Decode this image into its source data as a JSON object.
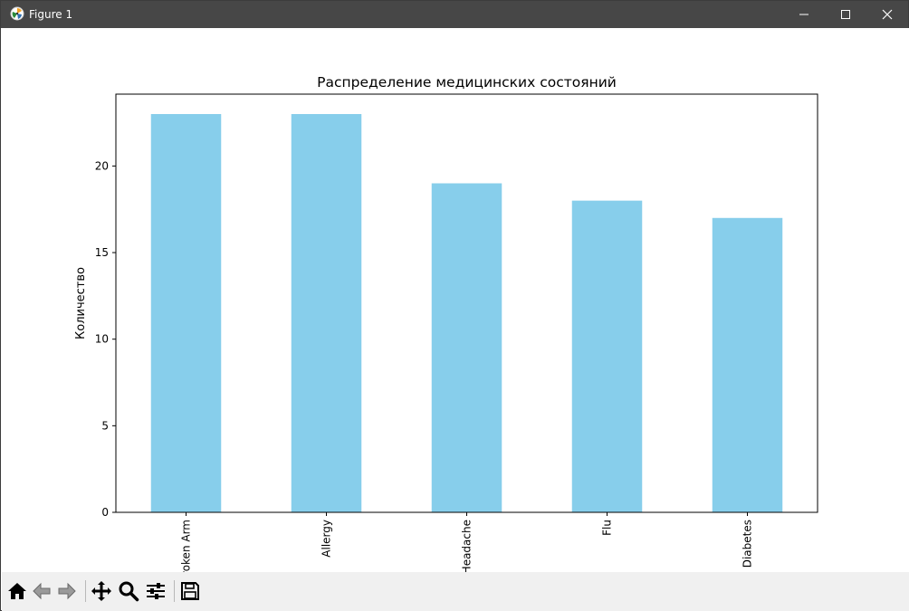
{
  "window": {
    "title": "Figure 1",
    "app_icon": "matplotlib-icon",
    "controls": [
      "minimize-icon",
      "maximize-icon",
      "close-icon"
    ]
  },
  "toolbar": {
    "tools": [
      "home-icon",
      "back-arrow-icon",
      "forward-arrow-icon",
      "pan-move-icon",
      "zoom-magnifier-icon",
      "configure-subplots-icon",
      "save-icon"
    ]
  },
  "colors": {
    "bar": "#87ceeb",
    "titlebar": "#474747",
    "toolbar": "#f0f0f0"
  },
  "chart_data": {
    "type": "bar",
    "title": "Распределение медицинских состояний",
    "xlabel": "",
    "ylabel": "Количество",
    "categories": [
      "Broken Arm",
      "Allergy",
      "Headache",
      "Flu",
      "Diabetes"
    ],
    "values": [
      23,
      23,
      19,
      18,
      17
    ],
    "ylim": [
      0,
      24.15
    ],
    "yticks": [
      0,
      5,
      10,
      15,
      20
    ],
    "grid": false,
    "legend": "none",
    "xtick_rotation": 90
  }
}
